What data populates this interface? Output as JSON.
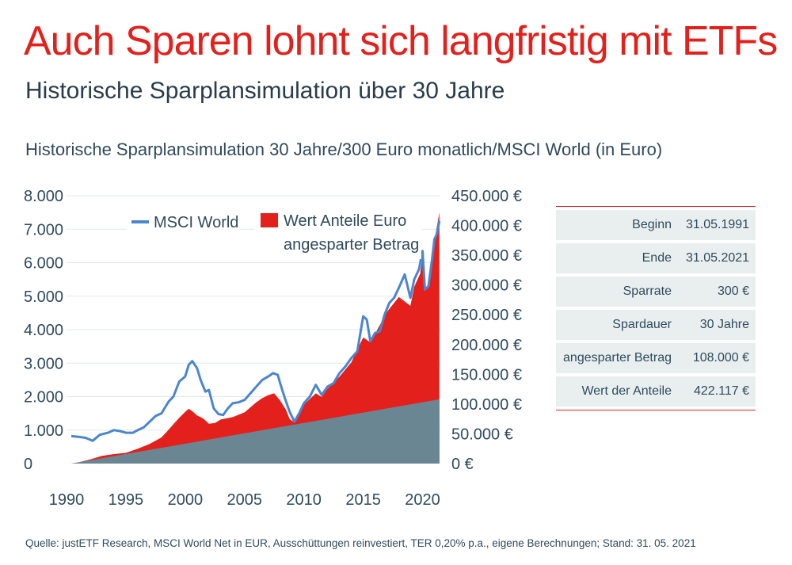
{
  "title": "Auch Sparen lohnt sich langfristig mit ETFs",
  "subtitle": "Historische Sparplansimulation über 30 Jahre",
  "chart_title": "Historische Sparplansimulation 30 Jahre/300 Euro monatlich/MSCI World (in Euro)",
  "source": "Quelle: justETF Research, MSCI World Net in EUR, Ausschüttungen reinvestiert, TER 0,20% p.a., eigene Berechnungen; Stand: 31. 05. 2021",
  "colors": {
    "accent": "#e3201b",
    "msci_line": "#4a86cf",
    "invested": "#6a8693",
    "text": "#2f4a5e"
  },
  "table": [
    {
      "label": "Beginn",
      "value": "31.05.1991"
    },
    {
      "label": "Ende",
      "value": "31.05.2021"
    },
    {
      "label": "Sparrate",
      "value": "300 €"
    },
    {
      "label": "Spardauer",
      "value": "30 Jahre"
    },
    {
      "label": "angesparter Betrag",
      "value": "108.000 €"
    },
    {
      "label": "Wert der Anteile",
      "value": "422.117 €"
    }
  ],
  "chart_data": {
    "type": "area",
    "xlim": [
      1990,
      2021.5
    ],
    "x_ticks": [
      {
        "v": 1990,
        "label": "1990"
      },
      {
        "v": 1995,
        "label": "1995"
      },
      {
        "v": 2000,
        "label": "2000"
      },
      {
        "v": 2005,
        "label": "2005"
      },
      {
        "v": 2010,
        "label": "2010"
      },
      {
        "v": 2015,
        "label": "2015"
      },
      {
        "v": 2020,
        "label": "2020"
      }
    ],
    "left_axis": {
      "ylim": [
        0,
        8000
      ],
      "ticks": [
        {
          "v": 0,
          "label": "0"
        },
        {
          "v": 1000,
          "label": "1.000"
        },
        {
          "v": 2000,
          "label": "2.000"
        },
        {
          "v": 3000,
          "label": "3.000"
        },
        {
          "v": 4000,
          "label": "4.000"
        },
        {
          "v": 5000,
          "label": "5.000"
        },
        {
          "v": 6000,
          "label": "6.000"
        },
        {
          "v": 7000,
          "label": "7.000"
        },
        {
          "v": 8000,
          "label": "8.000"
        }
      ]
    },
    "right_axis": {
      "ylim": [
        0,
        450000
      ],
      "ticks": [
        {
          "v": 0,
          "label": "0 €"
        },
        {
          "v": 50000,
          "label": "50.000 €"
        },
        {
          "v": 100000,
          "label": "100.000 €"
        },
        {
          "v": 150000,
          "label": "150.000 €"
        },
        {
          "v": 200000,
          "label": "200.000 €"
        },
        {
          "v": 250000,
          "label": "250.000 €"
        },
        {
          "v": 300000,
          "label": "300.000 €"
        },
        {
          "v": 350000,
          "label": "350.000 €"
        },
        {
          "v": 400000,
          "label": "400.000 €"
        },
        {
          "v": 450000,
          "label": "450.000 €"
        }
      ]
    },
    "legend": [
      "MSCI World",
      "Wert Anteile Euro",
      "angesparter Betrag"
    ],
    "series": [
      {
        "name": "MSCI World",
        "axis": "left",
        "style": "line",
        "x": [
          1990.4,
          1991,
          1991.6,
          1992.2,
          1992.8,
          1993.5,
          1994,
          1994.5,
          1995,
          1995.6,
          1996,
          1996.5,
          1997,
          1997.5,
          1998,
          1998.6,
          1999,
          1999.5,
          2000,
          2000.3,
          2000.6,
          2001,
          2001.3,
          2001.7,
          2002,
          2002.4,
          2002.8,
          2003.2,
          2003.6,
          2004,
          2004.5,
          2005,
          2005.5,
          2006,
          2006.5,
          2007,
          2007.4,
          2007.8,
          2008,
          2008.4,
          2008.8,
          2009.2,
          2009.6,
          2010,
          2010.5,
          2011,
          2011.5,
          2012,
          2012.5,
          2013,
          2013.5,
          2014,
          2014.5,
          2015,
          2015.3,
          2015.6,
          2016,
          2016.4,
          2016.8,
          2017.2,
          2017.6,
          2018,
          2018.5,
          2018.98,
          2019.3,
          2019.7,
          2020,
          2020.2,
          2020.5,
          2020.8,
          2021,
          2021.2,
          2021.42
        ],
        "values": [
          820,
          800,
          770,
          680,
          860,
          920,
          1000,
          970,
          920,
          920,
          1000,
          1080,
          1250,
          1420,
          1500,
          1850,
          2000,
          2450,
          2600,
          2950,
          3060,
          2850,
          2500,
          2150,
          2200,
          1650,
          1480,
          1450,
          1650,
          1800,
          1830,
          1900,
          2100,
          2300,
          2500,
          2600,
          2700,
          2650,
          2400,
          1950,
          1550,
          1250,
          1500,
          1800,
          2000,
          2350,
          2050,
          2300,
          2400,
          2700,
          2900,
          3150,
          3350,
          4400,
          4300,
          3650,
          3900,
          3950,
          4450,
          4800,
          4950,
          5250,
          5650,
          4950,
          5500,
          5800,
          6350,
          5200,
          5300,
          6100,
          6700,
          6850,
          7250
        ]
      },
      {
        "name": "Wert Anteile Euro",
        "axis": "right",
        "style": "area",
        "x": [
          1990.4,
          1991,
          1992,
          1993,
          1994,
          1995,
          1996,
          1997,
          1998,
          1998.6,
          1999,
          1999.5,
          2000,
          2000.3,
          2000.6,
          2001,
          2001.5,
          2002,
          2002.5,
          2003,
          2003.5,
          2004,
          2005,
          2006,
          2006.5,
          2007,
          2007.5,
          2008,
          2008.5,
          2008.8,
          2009.2,
          2009.5,
          2010,
          2011,
          2011.5,
          2012,
          2013,
          2014,
          2015,
          2015.5,
          2016,
          2017,
          2018,
          2018.98,
          2019.3,
          2019.8,
          2020,
          2020.2,
          2020.6,
          2021,
          2021.42
        ],
        "values": [
          0,
          2000,
          7000,
          13000,
          16000,
          18000,
          25000,
          33000,
          44000,
          57000,
          66000,
          77000,
          87000,
          92000,
          88000,
          81000,
          76000,
          67000,
          68000,
          74000,
          76000,
          78000,
          86000,
          103000,
          110000,
          115000,
          118000,
          106000,
          90000,
          75000,
          69000,
          80000,
          99000,
          118000,
          112000,
          126000,
          146000,
          170000,
          212000,
          205000,
          218000,
          255000,
          280000,
          265000,
          297000,
          319000,
          348000,
          290000,
          305000,
          375000,
          422000
        ]
      },
      {
        "name": "angesparter Betrag",
        "axis": "right",
        "style": "area",
        "x": [
          1990.4,
          2021.42
        ],
        "values": [
          0,
          108000
        ]
      }
    ]
  }
}
